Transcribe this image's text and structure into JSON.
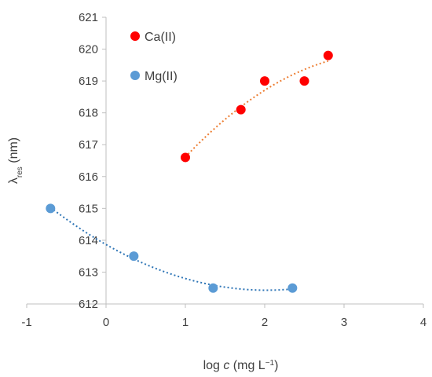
{
  "chart_data": {
    "type": "scatter",
    "title": "",
    "xlabel": {
      "prefix": "log ",
      "italic": "c",
      "units": " (mg L",
      "sup": "−1",
      "suffix": ")"
    },
    "ylabel": {
      "main": "λ",
      "sub": "res",
      "units": " (nm)"
    },
    "xlim": [
      -1,
      4
    ],
    "ylim": [
      612,
      621
    ],
    "xticks": [
      -1,
      0,
      1,
      2,
      3,
      4
    ],
    "yticks": [
      612,
      613,
      614,
      615,
      616,
      617,
      618,
      619,
      620,
      621
    ],
    "grid": false,
    "legend_position": "top-left",
    "series": [
      {
        "name": "Ca(II)",
        "color": "#ff0000",
        "trendline_color": "#ed7d31",
        "trendline": "polynomial",
        "x": [
          1.0,
          1.7,
          2.0,
          2.5,
          2.8
        ],
        "y": [
          616.6,
          618.1,
          619.0,
          619.0,
          619.8
        ]
      },
      {
        "name": "Mg(II)",
        "color": "#5b9bd5",
        "trendline_color": "#2e75b6",
        "trendline": "polynomial",
        "x": [
          -0.7,
          0.35,
          1.35,
          2.35
        ],
        "y": [
          615.0,
          613.5,
          612.5,
          612.5
        ]
      }
    ]
  }
}
